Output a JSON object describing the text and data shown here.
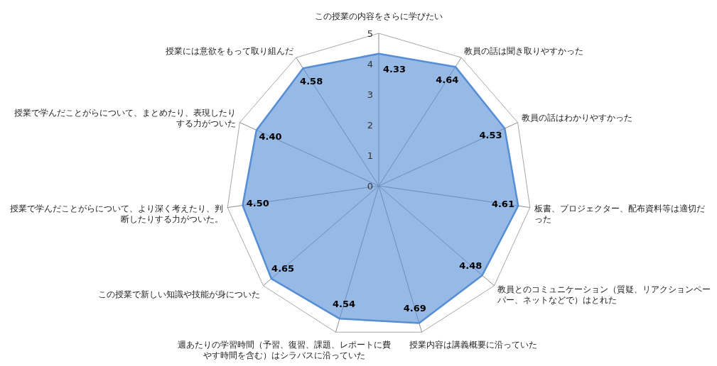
{
  "chart_data": {
    "type": "radar",
    "categories": [
      "この授業の内容をさらに学びたい",
      "教員の話は聞き取りやすかった",
      "教員の話はわかりやすかった",
      "板書、プロジェクター、配布資料等は適切だった",
      "教員とのコミュニケーション（質疑、リアクションペーパー、ネットなどで）はとれた",
      "授業内容は講義概要に沿っていた",
      "週あたりの学習時間（予習、復習、課題、レポートに費やす時間を含む）はシラバスに沿っていた",
      "この授業で新しい知識や技能が身についた",
      "授業で学んだことがらについて、より深く考えたり、判断したりする力がついた。",
      "授業で学んだことがらについて、まとめたり、表現したりする力がついた",
      "授業には意欲をもって取り組んだ"
    ],
    "series": [
      {
        "color": "#558ed5",
        "values": [
          4.33,
          4.64,
          4.53,
          4.61,
          4.48,
          4.69,
          4.54,
          4.65,
          4.5,
          4.4,
          4.58
        ],
        "value_labels": [
          "4.33",
          "4.64",
          "4.53",
          "4.61",
          "4.48",
          "4.69",
          "4.54",
          "4.65",
          "4.50",
          "4.40",
          "4.58"
        ]
      }
    ],
    "ylim": [
      0,
      5
    ],
    "yticks": [
      0,
      1,
      2,
      3,
      4,
      5
    ]
  }
}
